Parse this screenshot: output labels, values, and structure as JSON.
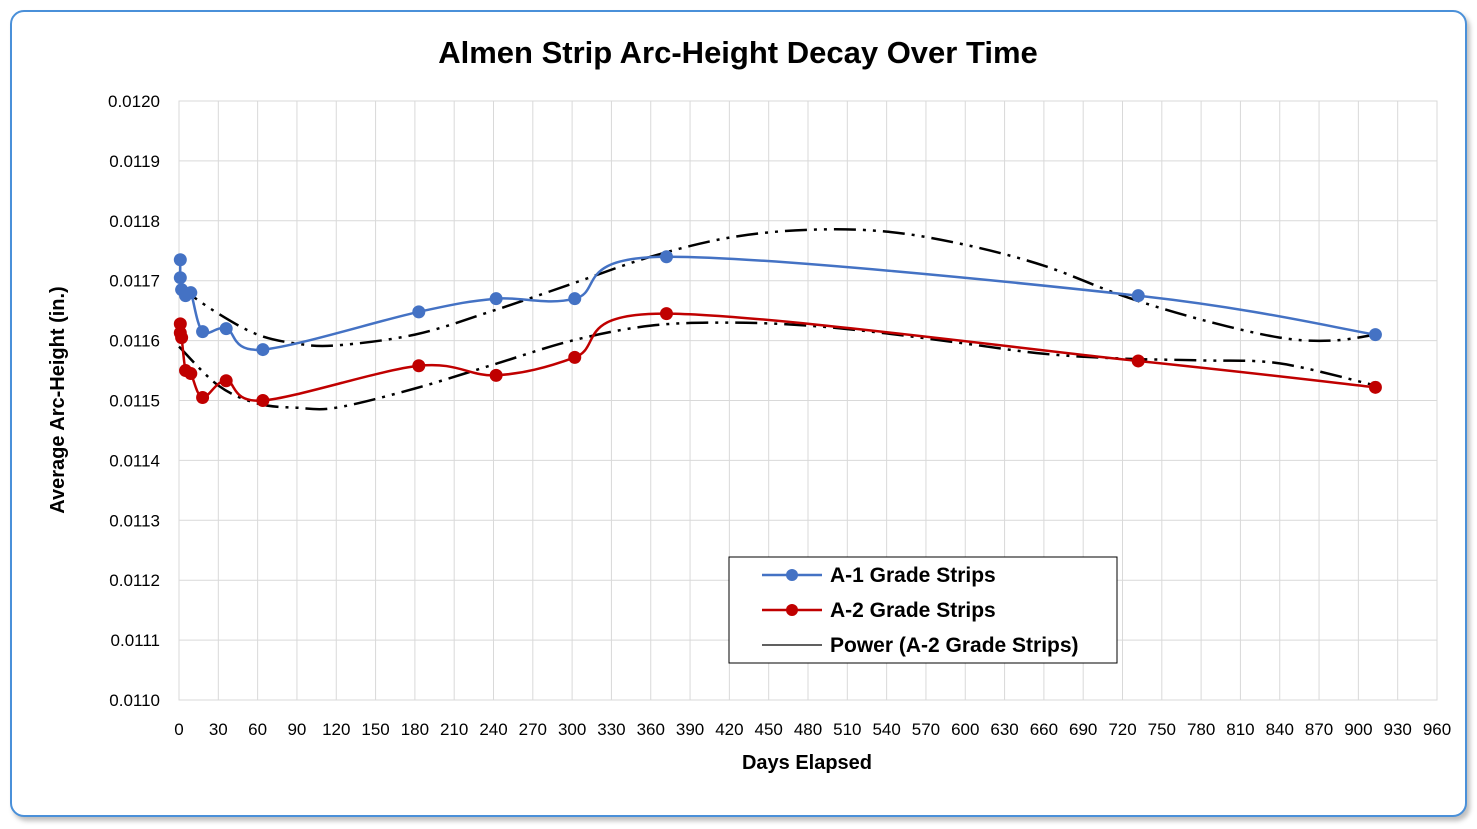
{
  "chart_data": {
    "type": "line",
    "title": "Almen Strip Arc-Height Decay Over Time",
    "xlabel": "Days Elapsed",
    "ylabel": "Average Arc-Height (in.)",
    "xlim": [
      0,
      960
    ],
    "ylim": [
      0.011,
      0.012
    ],
    "x_ticks": [
      "0",
      "30",
      "60",
      "90",
      "120",
      "150",
      "180",
      "210",
      "240",
      "270",
      "300",
      "330",
      "360",
      "390",
      "420",
      "450",
      "480",
      "510",
      "540",
      "570",
      "600",
      "630",
      "660",
      "690",
      "720",
      "750",
      "780",
      "810",
      "840",
      "870",
      "900",
      "930",
      "960"
    ],
    "y_ticks": [
      "0.0110",
      "0.0111",
      "0.0112",
      "0.0113",
      "0.0114",
      "0.0115",
      "0.0116",
      "0.0117",
      "0.0118",
      "0.0119",
      "0.0120"
    ],
    "grid": true,
    "legend_position": "bottom-center",
    "series": [
      {
        "name": "A-1 Grade Strips",
        "color": "#4472c4",
        "style": "smooth-line-markers",
        "x": [
          1,
          1,
          2,
          5,
          9,
          18,
          36,
          64,
          183,
          242,
          302,
          372,
          732,
          913
        ],
        "y": [
          0.011735,
          0.011705,
          0.011685,
          0.011675,
          0.01168,
          0.011615,
          0.01162,
          0.011585,
          0.011648,
          0.01167,
          0.01167,
          0.01174,
          0.011675,
          0.01161
        ]
      },
      {
        "name": "A-2 Grade Strips",
        "color": "#c00000",
        "style": "smooth-line-markers",
        "x": [
          1,
          1,
          2,
          5,
          9,
          18,
          36,
          64,
          183,
          242,
          302,
          372,
          732,
          913
        ],
        "y": [
          0.011628,
          0.011613,
          0.011605,
          0.01155,
          0.011545,
          0.011505,
          0.011533,
          0.0115,
          0.011558,
          0.011542,
          0.011572,
          0.011645,
          0.011566,
          0.011522
        ]
      },
      {
        "name": "Power (A-2 Grade Strips)",
        "color": "#000000",
        "style": "trendline-dash-dot-dot",
        "x": [
          0,
          30,
          60,
          90,
          120,
          180,
          240,
          300,
          360,
          420,
          480,
          540,
          600,
          660,
          720,
          780,
          840,
          913
        ],
        "y": [
          0.01159,
          0.011525,
          0.011495,
          0.011488,
          0.011488,
          0.01152,
          0.01156,
          0.0116,
          0.011625,
          0.01163,
          0.011625,
          0.011612,
          0.011595,
          0.011578,
          0.01157,
          0.011567,
          0.011562,
          0.011525
        ]
      },
      {
        "name": "",
        "color": "#000000",
        "style": "trendline-dash-dot-dot",
        "x": [
          0,
          30,
          60,
          90,
          120,
          180,
          240,
          300,
          360,
          420,
          480,
          540,
          600,
          660,
          720,
          780,
          840,
          880,
          913
        ],
        "y": [
          0.01169,
          0.011645,
          0.01161,
          0.011595,
          0.011592,
          0.01161,
          0.01165,
          0.011695,
          0.01174,
          0.011772,
          0.011785,
          0.011782,
          0.01176,
          0.011725,
          0.011675,
          0.011635,
          0.011605,
          0.0116,
          0.01161
        ]
      }
    ]
  }
}
